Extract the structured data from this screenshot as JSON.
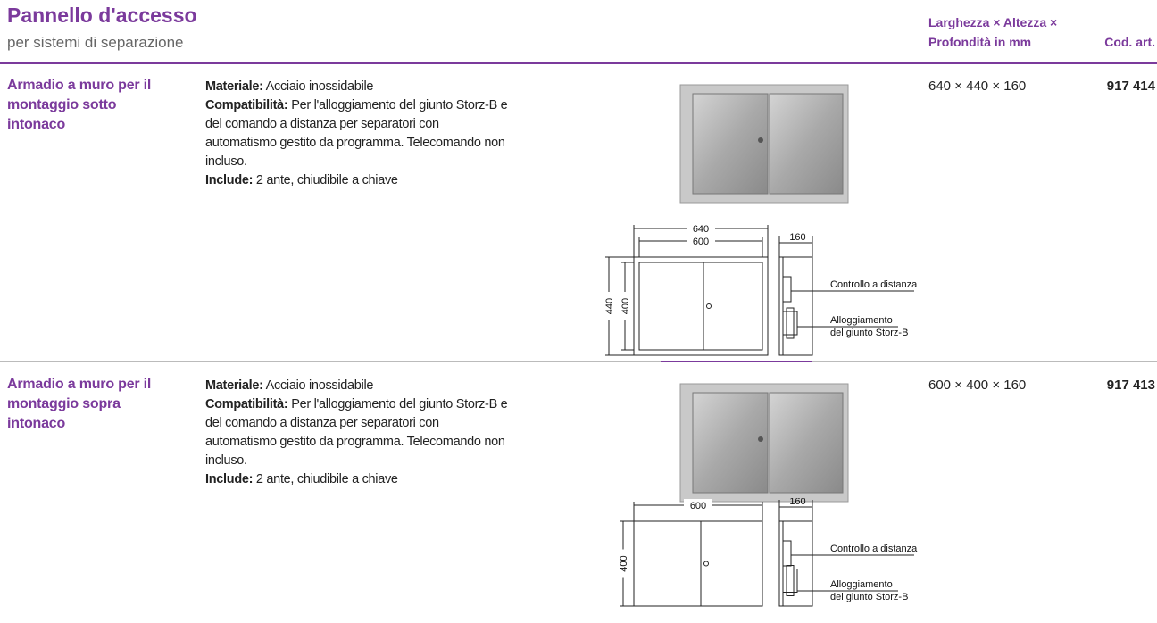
{
  "header": {
    "title": "Pannello d'accesso",
    "subtitle": "per sistemi di separazione",
    "col_dimensions": [
      "Larghezza × Altezza ×",
      "Profondità in mm"
    ],
    "col_code": "Cod. art."
  },
  "products": [
    {
      "name": "Armadio a muro per il montaggio sotto intonaco",
      "material_label": "Materiale:",
      "material": "Acciaio inossidabile",
      "compat_label": "Compatibilità:",
      "compat": "Per l'alloggiamento del giunto Storz-B e del comando a distanza per separatori con automatismo gestito da programma. Telecomando non incluso.",
      "include_label": "Include:",
      "include": "2 ante, chiudibile a chiave",
      "dimensions": "640 × 440 × 160",
      "code": "917 414",
      "drawing": {
        "width_labels": [
          "640",
          "600"
        ],
        "height_labels": [
          "440",
          "400"
        ],
        "depth_label": "160",
        "callout_remote": "Controllo a distanza",
        "callout_coupling": [
          "Alloggiamento",
          "del giunto Storz-B"
        ]
      }
    },
    {
      "name": "Armadio a muro per il montaggio sopra intonaco",
      "material_label": "Materiale:",
      "material": "Acciaio inossidabile",
      "compat_label": "Compatibilità:",
      "compat": "Per l'alloggiamento del giunto Storz-B e del comando a distanza per separatori con automatismo gestito da programma. Telecomando non incluso.",
      "include_label": "Include:",
      "include": "2 ante, chiudibile a chiave",
      "dimensions": "600 × 400 × 160",
      "code": "917 413",
      "drawing": {
        "width_labels": [
          "600"
        ],
        "height_labels": [
          "400"
        ],
        "depth_label": "160",
        "callout_remote": "Controllo a distanza",
        "callout_coupling": [
          "Alloggiamento",
          "del giunto Storz-B"
        ]
      }
    }
  ]
}
